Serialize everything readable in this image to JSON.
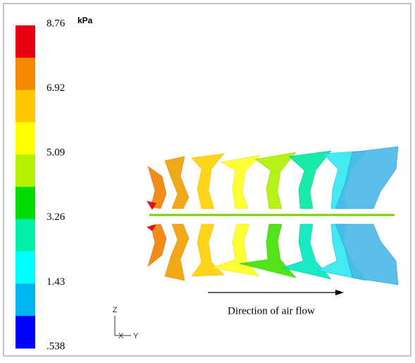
{
  "colorbar": {
    "unit": "kPa",
    "labels": [
      "8.76",
      "6.92",
      "5.09",
      "3.26",
      "1.43",
      ".538"
    ],
    "colors": [
      "#e60012",
      "#f28a00",
      "#ffc800",
      "#ffff00",
      "#b4f000",
      "#00dc00",
      "#00eeaa",
      "#00ffff",
      "#00b4f0",
      "#0000ff"
    ]
  },
  "annotation": "Direction of air flow",
  "triad": {
    "z": "Z",
    "x": "X",
    "y": "Y"
  }
}
